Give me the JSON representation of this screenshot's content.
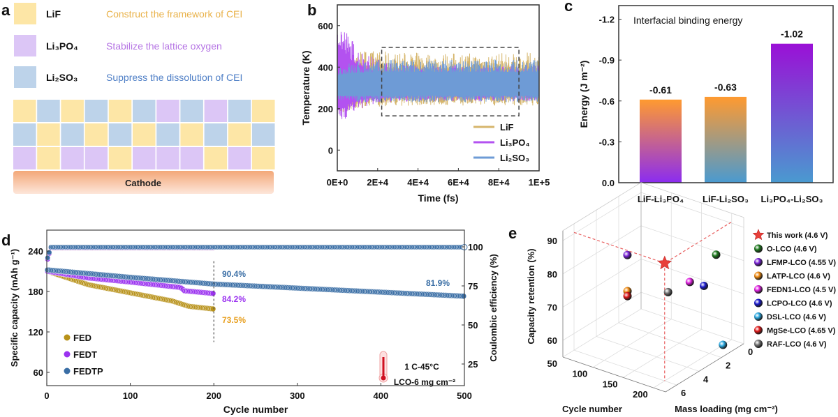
{
  "panel_labels": {
    "a": "a",
    "b": "b",
    "c": "c",
    "d": "d",
    "e": "e"
  },
  "panel_a": {
    "legend": [
      {
        "label": "LiF",
        "description": "Construct the framework of CEI",
        "color": "#fde6a6",
        "text_color": "#e9b24a"
      },
      {
        "label": "Li₃PO₄",
        "description": "Stabilize the lattice oxygen",
        "color": "#dcc6f6",
        "text_color": "#b676e4"
      },
      {
        "label": "Li₂SO₃",
        "description": "Suppress the dissolution of CEI",
        "color": "#bdd3ea",
        "text_color": "#4f7fc6"
      }
    ],
    "layer_rows": [
      [
        0,
        2,
        0,
        2,
        0,
        2,
        1,
        2,
        1,
        2,
        0
      ],
      [
        2,
        0,
        2,
        0,
        2,
        0,
        2,
        0,
        2,
        0,
        2
      ],
      [
        1,
        0,
        1,
        1,
        0,
        1,
        1,
        1,
        0,
        1,
        0
      ]
    ],
    "substrate": "Cathode"
  },
  "chart_data": [
    {
      "panel": "b",
      "type": "line",
      "xlabel": "Time (fs)",
      "ylabel": "Temperature (K)",
      "xlim": [
        0,
        100000
      ],
      "ylim": [
        -100,
        700
      ],
      "xticks": [
        "0E+0",
        "2E+4",
        "4E+4",
        "6E+4",
        "8E+4",
        "1E+5"
      ],
      "xtick_values": [
        0,
        20000,
        40000,
        60000,
        80000,
        100000
      ],
      "yticks": [
        0,
        200,
        400,
        600
      ],
      "legend_position": "bottom-right",
      "highlight_box": {
        "x": [
          22000,
          90000
        ],
        "y": [
          165,
          495
        ]
      },
      "series": [
        {
          "name": "LiF",
          "color": "#d6b66c",
          "mean": 300,
          "early_range": [
            160,
            550
          ],
          "steady_range": [
            215,
            470
          ]
        },
        {
          "name": "Li₃PO₄",
          "color": "#b352f0",
          "mean": 300,
          "early_range": [
            100,
            700
          ],
          "steady_range": [
            235,
            410
          ]
        },
        {
          "name": "Li₂SO₃",
          "color": "#6e9bd6",
          "mean": 300,
          "early_range": [
            230,
            410
          ],
          "steady_range": [
            230,
            440
          ]
        }
      ]
    },
    {
      "panel": "c",
      "type": "bar",
      "title": "Interfacial binding energy",
      "ylabel": "Energy (J m⁻²)",
      "categories": [
        "LiF-Li₃PO₄",
        "LiF-Li₂SO₃",
        "Li₃PO₄-Li₂SO₃"
      ],
      "values": [
        -0.61,
        -0.63,
        -1.02
      ],
      "data_labels": [
        "-0.61",
        "-0.63",
        "-1.02"
      ],
      "yticks": [
        "0.0",
        "-0.3",
        "-0.6",
        "-0.9",
        "-1.2"
      ],
      "ytick_values": [
        0,
        -0.3,
        -0.6,
        -0.9,
        -1.2
      ],
      "ylim": [
        0,
        -1.3
      ],
      "inverted_y": true,
      "bar_gradients": [
        [
          "#ff9a30",
          "#8b2cf0"
        ],
        [
          "#ff9a30",
          "#4a9ad0"
        ],
        [
          "#9a10d6",
          "#4a9ad0"
        ]
      ]
    },
    {
      "panel": "d",
      "type": "scatter",
      "xlabel": "Cycle number",
      "ylabel": "Specific capacity (mAh g⁻¹)",
      "y2label": "Coulombic efficiency (%)",
      "xlim": [
        0,
        500
      ],
      "xticks": [
        0,
        100,
        200,
        300,
        400,
        500
      ],
      "yticks": [
        60,
        120,
        180,
        240
      ],
      "y2ticks": [
        25,
        50,
        75,
        100
      ],
      "legend_position": "bottom-left",
      "series": [
        {
          "name": "FED",
          "color": "#b8921a",
          "capacity": [
            [
              1,
              210
            ],
            [
              50,
              190
            ],
            [
              100,
              178
            ],
            [
              150,
              166
            ],
            [
              170,
              158
            ],
            [
              200,
              154
            ]
          ],
          "ce": [
            [
              1,
              92
            ],
            [
              5,
              99.2
            ],
            [
              200,
              99.2
            ]
          ],
          "end_cycle": 200,
          "retention_label": "73.5%"
        },
        {
          "name": "FEDT",
          "color": "#9b32f0",
          "capacity": [
            [
              1,
              210
            ],
            [
              50,
              200
            ],
            [
              100,
              194
            ],
            [
              160,
              186
            ],
            [
              165,
              181
            ],
            [
              200,
              177
            ]
          ],
          "ce": [
            [
              1,
              92
            ],
            [
              5,
              99.4
            ],
            [
              200,
              99.4
            ]
          ],
          "end_cycle": 200,
          "retention_label": "84.2%"
        },
        {
          "name": "FEDTP",
          "color": "#3a6ea5",
          "capacity": [
            [
              1,
              212
            ],
            [
              100,
              201
            ],
            [
              200,
              191
            ],
            [
              300,
              185
            ],
            [
              400,
              179
            ],
            [
              500,
              173
            ]
          ],
          "ce": [
            [
              1,
              93
            ],
            [
              5,
              99.8
            ],
            [
              500,
              99.8
            ]
          ],
          "end_cycle": 500,
          "retention_label": "81.9%",
          "retention_200_label": "90.4%"
        }
      ],
      "marker_line_cycle": 200,
      "condition": {
        "rate_temp": "1 C-45°C",
        "loading": "LCO-6 mg cm⁻²",
        "icon": "thermometer-icon"
      }
    },
    {
      "panel": "e",
      "type": "scatter3d",
      "xlabel": "Cycle number",
      "ylabel": "Mass loading (mg cm⁻²)",
      "zlabel": "Capacity retention (%)",
      "xticks": [
        50,
        100,
        150,
        200
      ],
      "yticks": [
        0,
        2,
        4,
        6
      ],
      "zticks": [
        60,
        70,
        80,
        90
      ],
      "legend_position": "right",
      "points": [
        {
          "name": "This work (4.6 V)",
          "color": "#e8403a",
          "marker": "star",
          "cycle": 200,
          "mass": 6,
          "retention": 90.4
        },
        {
          "name": "O-LCO (4.6 V)",
          "color": "#1f7a1f",
          "marker": "sphere",
          "cycle": 215,
          "mass": 2.2,
          "retention": 86
        },
        {
          "name": "LFMP-LCO (4.55 V)",
          "color": "#7a22d8",
          "marker": "sphere",
          "cycle": 118,
          "mass": 4.9,
          "retention": 85.5
        },
        {
          "name": "LATP-LCO (4.6 V)",
          "color": "#f08a10",
          "marker": "sphere",
          "cycle": 120,
          "mass": 5,
          "retention": 75
        },
        {
          "name": "FEDN1-LCO (4.5 V)",
          "color": "#e020e0",
          "marker": "sphere",
          "cycle": 188,
          "mass": 3.1,
          "retention": 78
        },
        {
          "name": "LCPO-LCO (4.6 V)",
          "color": "#1a1ad0",
          "marker": "sphere",
          "cycle": 204,
          "mass": 2.7,
          "retention": 77
        },
        {
          "name": "DSL-LCO (4.6 V)",
          "color": "#2aa8e0",
          "marker": "sphere",
          "cycle": 217,
          "mass": 1.7,
          "retention": 58
        },
        {
          "name": "MgSe-LCO (4.65 V)",
          "color": "#e01818",
          "marker": "sphere",
          "cycle": 120,
          "mass": 5,
          "retention": 73.5
        },
        {
          "name": "RAF-LCO (4.6 V)",
          "color": "#777777",
          "marker": "sphere",
          "cycle": 165,
          "mass": 3.8,
          "retention": 75
        }
      ]
    }
  ]
}
